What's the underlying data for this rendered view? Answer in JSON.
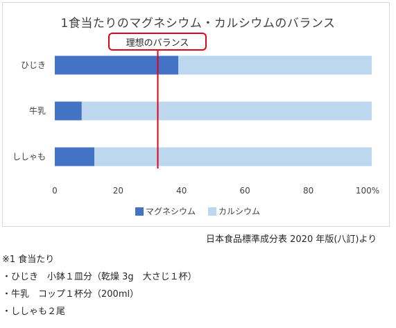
{
  "chart_data": {
    "type": "bar",
    "orientation": "horizontal",
    "stacked": "100%",
    "title": "1食当たりのマグネシウム・カルシウムのバランス",
    "categories": [
      "ひじき",
      "牛乳",
      "ししゃも"
    ],
    "series": [
      {
        "name": "マグネシウム",
        "values": [
          39,
          8.5,
          12.5
        ],
        "color": "#4472c4"
      },
      {
        "name": "カルシウム",
        "values": [
          61,
          91.5,
          87.5
        ],
        "color": "#bdd7ee"
      }
    ],
    "x_ticks": [
      "0",
      "20",
      "40",
      "60",
      "80",
      "100%"
    ],
    "xlim": [
      0,
      100
    ],
    "grid": false,
    "legend_position": "bottom",
    "reference_line": {
      "value": 32.5,
      "color": "#e3001b",
      "label": "理想のバランス"
    }
  },
  "source": "日本食品標準成分表 2020 年版(八訂)より",
  "notes": [
    "※1 食当たり",
    "・ひじき　小鉢１皿分（乾燥 3g　大さじ１杯）",
    "・牛乳　コップ１杯分（200ml）",
    "・ししゃも２尾"
  ]
}
